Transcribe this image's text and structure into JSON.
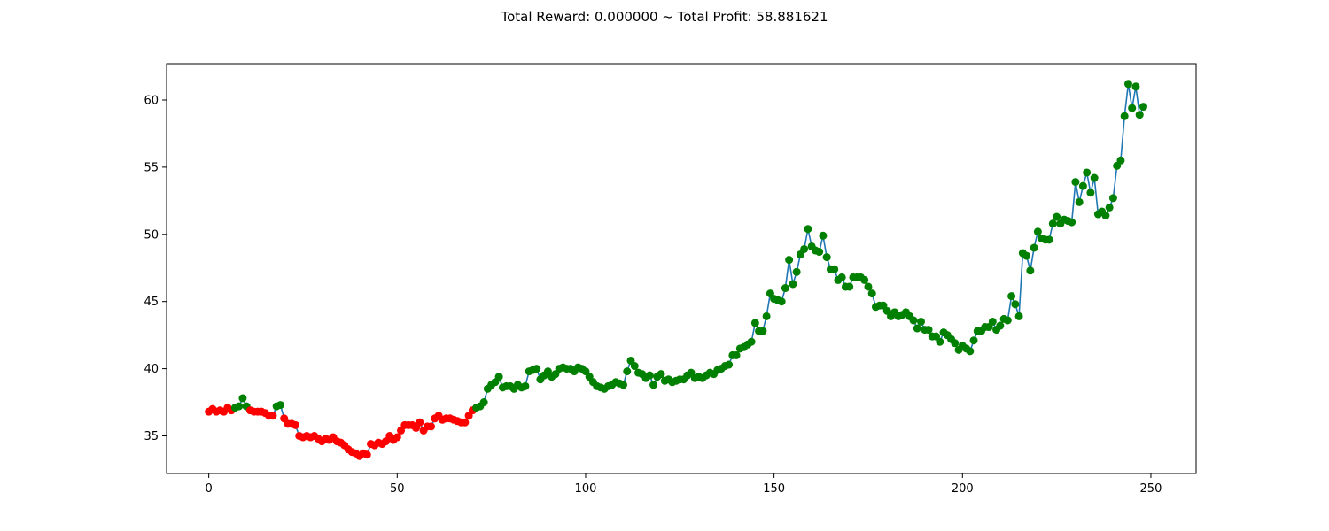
{
  "figure": {
    "suptitle": "Total Reward: 0.000000 ~ Total Profit: 58.881621"
  },
  "colors": {
    "line": "#1f77b4",
    "long_marker": "#008000",
    "short_marker": "#ff0000",
    "axes": "#000000",
    "background": "#ffffff"
  },
  "chart_data": {
    "type": "line",
    "title": "Total Reward: 0.000000 ~ Total Profit: 58.881621",
    "xlabel": "",
    "ylabel": "",
    "xlim": [
      -11.2,
      262.0
    ],
    "ylim": [
      32.2,
      62.7
    ],
    "xticks": [
      0,
      50,
      100,
      150,
      200,
      250
    ],
    "yticks": [
      35,
      40,
      45,
      50,
      55,
      60
    ],
    "grid": false,
    "series": [
      {
        "values": [
          36.8,
          37.0,
          36.8,
          36.9,
          36.8,
          37.1,
          36.9,
          37.1,
          37.2,
          37.8,
          37.2,
          36.9,
          36.8,
          36.8,
          36.8,
          36.7,
          36.5,
          36.5,
          37.2,
          37.3,
          36.3,
          35.9,
          35.9,
          35.8,
          35.0,
          34.9,
          35.0,
          34.9,
          35.0,
          34.8,
          34.6,
          34.8,
          34.7,
          34.9,
          34.6,
          34.5,
          34.3,
          34.0,
          33.8,
          33.7,
          33.5,
          33.7,
          33.6,
          34.4,
          34.3,
          34.5,
          34.4,
          34.6,
          35.0,
          34.7,
          34.9,
          35.4,
          35.8,
          35.8,
          35.8,
          35.6,
          36.0,
          35.4,
          35.7,
          35.7,
          36.3,
          36.5,
          36.2,
          36.3,
          36.3,
          36.2,
          36.1,
          36.0,
          36.0,
          36.5,
          36.9,
          37.1,
          37.2,
          37.5,
          38.5,
          38.8,
          39.0,
          39.4,
          38.6,
          38.7,
          38.7,
          38.5,
          38.8,
          38.6,
          38.7,
          39.8,
          39.9,
          40.0,
          39.2,
          39.5,
          39.8,
          39.4,
          39.6,
          40.0,
          40.1,
          40.0,
          40.0,
          39.8,
          40.1,
          40.0,
          39.8,
          39.4,
          39.0,
          38.7,
          38.6,
          38.5,
          38.7,
          38.8,
          39.0,
          38.9,
          38.8,
          39.8,
          40.6,
          40.2,
          39.7,
          39.6,
          39.3,
          39.5,
          38.8,
          39.4,
          39.6,
          39.1,
          39.2,
          39.0,
          39.1,
          39.2,
          39.2,
          39.5,
          39.7,
          39.3,
          39.4,
          39.3,
          39.5,
          39.7,
          39.6,
          39.9,
          40.0,
          40.2,
          40.3,
          41.0,
          41.0,
          41.5,
          41.6,
          41.8,
          42.0,
          43.4,
          42.8,
          42.8,
          43.9,
          45.6,
          45.2,
          45.1,
          45.0,
          46.0,
          48.1,
          46.3,
          47.2,
          48.5,
          48.9,
          50.4,
          49.1,
          48.8,
          48.7,
          49.9,
          48.3,
          47.4,
          47.4,
          46.6,
          46.8,
          46.1,
          46.1,
          46.8,
          46.8,
          46.8,
          46.6,
          46.1,
          45.6,
          44.6,
          44.7,
          44.7,
          44.3,
          43.9,
          44.2,
          43.9,
          44.0,
          44.2,
          43.9,
          43.6,
          43.0,
          43.5,
          42.9,
          42.9,
          42.4,
          42.4,
          42.0,
          42.7,
          42.5,
          42.2,
          41.9,
          41.4,
          41.7,
          41.5,
          41.3,
          42.1,
          42.8,
          42.8,
          43.1,
          43.1,
          43.5,
          42.9,
          43.2,
          43.7,
          43.6,
          45.4,
          44.8,
          43.9,
          48.6,
          48.4,
          47.3,
          49.0,
          50.2,
          49.7,
          49.6,
          49.6,
          50.8,
          51.3,
          50.8,
          51.1,
          51.0,
          50.9,
          53.9,
          52.4,
          53.6,
          54.6,
          53.1,
          54.2,
          51.5,
          51.7,
          51.4,
          52.0,
          52.7,
          55.1,
          55.5,
          58.8,
          61.2,
          59.4,
          61.0,
          58.9,
          59.5
        ],
        "position_markers": [
          "short",
          "short",
          "short",
          "short",
          "short",
          "short",
          "short",
          "long",
          "long",
          "long",
          "long",
          "short",
          "short",
          "short",
          "short",
          "short",
          "short",
          "short",
          "long",
          "long",
          "short",
          "short",
          "short",
          "short",
          "short",
          "short",
          "short",
          "short",
          "short",
          "short",
          "short",
          "short",
          "short",
          "short",
          "short",
          "short",
          "short",
          "short",
          "short",
          "short",
          "short",
          "short",
          "short",
          "short",
          "short",
          "short",
          "short",
          "short",
          "short",
          "short",
          "short",
          "short",
          "short",
          "short",
          "short",
          "short",
          "short",
          "short",
          "short",
          "short",
          "short",
          "short",
          "short",
          "short",
          "short",
          "short",
          "short",
          "short",
          "short",
          "short",
          "short",
          "long",
          "long",
          "long",
          "long",
          "long",
          "long",
          "long",
          "long",
          "long",
          "long",
          "long",
          "long",
          "long",
          "long",
          "long",
          "long",
          "long",
          "long",
          "long",
          "long",
          "long",
          "long",
          "long",
          "long",
          "long",
          "long",
          "long",
          "long",
          "long",
          "long",
          "long",
          "long",
          "long",
          "long",
          "long",
          "long",
          "long",
          "long",
          "long",
          "long",
          "long",
          "long",
          "long",
          "long",
          "long",
          "long",
          "long",
          "long",
          "long",
          "long",
          "long",
          "long",
          "long",
          "long",
          "long",
          "long",
          "long",
          "long",
          "long",
          "long",
          "long",
          "long",
          "long",
          "long",
          "long",
          "long",
          "long",
          "long",
          "long",
          "long",
          "long",
          "long",
          "long",
          "long",
          "long",
          "long",
          "long",
          "long",
          "long",
          "long",
          "long",
          "long",
          "long",
          "long",
          "long",
          "long",
          "long",
          "long",
          "long",
          "long",
          "long",
          "long",
          "long",
          "long",
          "long",
          "long",
          "long",
          "long",
          "long",
          "long",
          "long",
          "long",
          "long",
          "long",
          "long",
          "long",
          "long",
          "long",
          "long",
          "long",
          "long",
          "long",
          "long",
          "long",
          "long",
          "long",
          "long",
          "long",
          "long",
          "long",
          "long",
          "long",
          "long",
          "long",
          "long",
          "long",
          "long",
          "long",
          "long",
          "long",
          "long",
          "long",
          "long",
          "long",
          "long",
          "long",
          "long",
          "long",
          "long",
          "long",
          "long",
          "long",
          "long",
          "long",
          "long",
          "long",
          "long",
          "long",
          "long",
          "long",
          "long",
          "long",
          "long",
          "long",
          "long",
          "long",
          "long",
          "long",
          "long",
          "long",
          "long",
          "long",
          "long",
          "long",
          "long",
          "long",
          "long",
          "long",
          "long",
          "long",
          "long",
          "long",
          "long",
          "long",
          "long",
          "long",
          "long",
          "long",
          "long",
          "long"
        ]
      }
    ]
  }
}
